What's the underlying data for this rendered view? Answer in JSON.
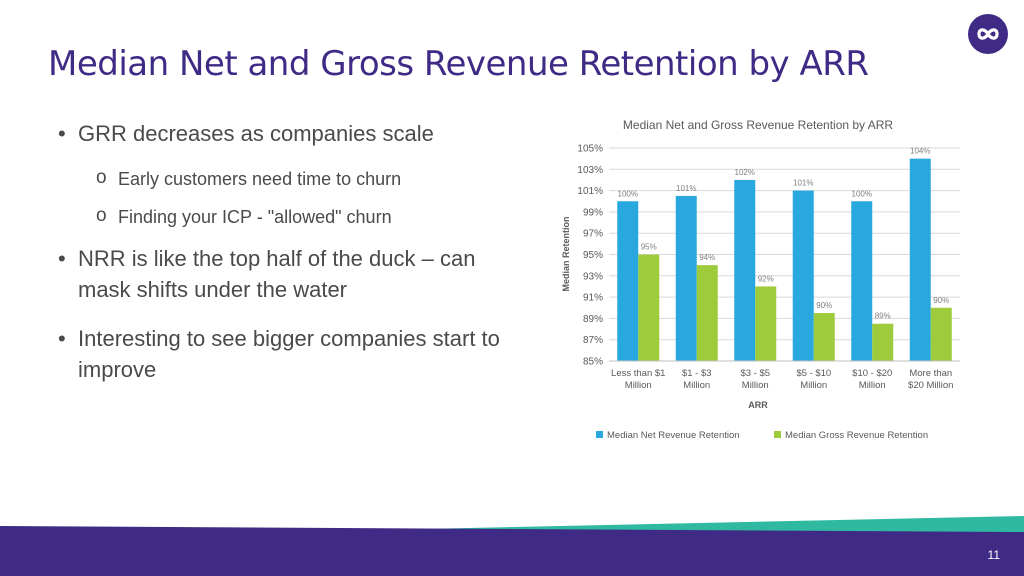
{
  "slide": {
    "title": "Median Net and Gross Revenue Retention by ARR",
    "page_number": "11",
    "logo_icon": "infinity-icon",
    "colors": {
      "title": "#3f2b85",
      "band": "#3f2b85",
      "band_accent": "#2fb9a0"
    }
  },
  "bullets": [
    {
      "text": "GRR decreases as companies scale",
      "level": 1
    },
    {
      "text": "Early customers need time to churn",
      "level": 2
    },
    {
      "text": "Finding your ICP - \"allowed\" churn",
      "level": 2
    },
    {
      "text": "NRR is like the top half of the duck – can mask shifts under the water",
      "level": 1
    },
    {
      "text": "Interesting to see bigger companies start to improve",
      "level": 1
    }
  ],
  "chart_data": {
    "type": "bar",
    "title": "Median Net and Gross Revenue Retention by ARR",
    "xlabel": "ARR",
    "ylabel": "Median Retention",
    "ylim": [
      85,
      105
    ],
    "yticks": [
      85,
      87,
      89,
      91,
      93,
      95,
      97,
      99,
      101,
      103,
      105
    ],
    "ytick_labels": [
      "85%",
      "87%",
      "89%",
      "91%",
      "93%",
      "95%",
      "97%",
      "99%",
      "101%",
      "103%",
      "105%"
    ],
    "categories": [
      [
        "Less than $1",
        "Million"
      ],
      [
        "$1 - $3",
        "Million"
      ],
      [
        "$3 - $5",
        "Million"
      ],
      [
        "$5 - $10",
        "Million"
      ],
      [
        "$10 - $20",
        "Million"
      ],
      [
        "More than",
        "$20 Million"
      ]
    ],
    "series": [
      {
        "name": "Median Net Revenue Retention",
        "color": "#29a8e0",
        "values": [
          100,
          100.5,
          102,
          101,
          100,
          104
        ],
        "labels": [
          "100%",
          "101%",
          "102%",
          "101%",
          "100%",
          "104%"
        ]
      },
      {
        "name": "Median Gross Revenue Retention",
        "color": "#9dcb3c",
        "values": [
          95,
          94,
          92,
          89.5,
          88.5,
          90
        ],
        "labels": [
          "95%",
          "94%",
          "92%",
          "90%",
          "89%",
          "90%"
        ]
      }
    ],
    "grid": true,
    "legend": "bottom"
  }
}
